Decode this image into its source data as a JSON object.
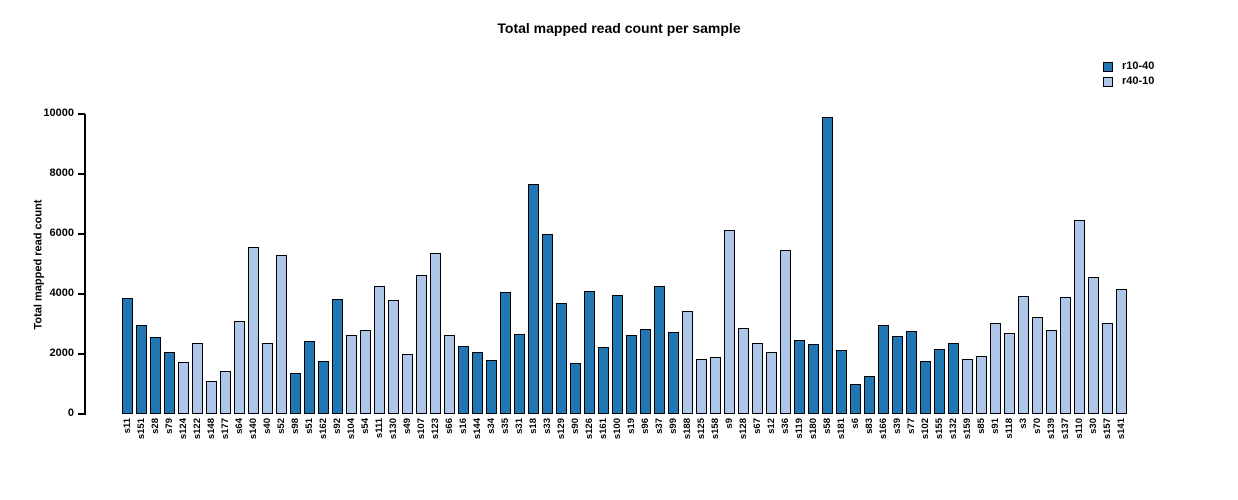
{
  "chart_data": {
    "type": "bar",
    "title": "Total mapped read count per sample",
    "ylabel": "Total mapped read count",
    "xlabel": "",
    "ylim": [
      0,
      10000
    ],
    "yticks": [
      0,
      2000,
      4000,
      6000,
      8000,
      10000
    ],
    "grid": false,
    "legend_position": "top-right",
    "legend": [
      {
        "label": "r10-40",
        "color": "#2077B4"
      },
      {
        "label": "r40-10",
        "color": "#AEC7E8"
      }
    ],
    "samples": [
      {
        "label": "s11",
        "group": "r10-40",
        "value": 3880
      },
      {
        "label": "s151",
        "group": "r10-40",
        "value": 2980
      },
      {
        "label": "s28",
        "group": "r10-40",
        "value": 2580
      },
      {
        "label": "s79",
        "group": "r10-40",
        "value": 2080
      },
      {
        "label": "s124",
        "group": "r40-10",
        "value": 1740
      },
      {
        "label": "s122",
        "group": "r40-10",
        "value": 2380
      },
      {
        "label": "s148",
        "group": "r40-10",
        "value": 1100
      },
      {
        "label": "s177",
        "group": "r40-10",
        "value": 1440
      },
      {
        "label": "s64",
        "group": "r40-10",
        "value": 3110
      },
      {
        "label": "s140",
        "group": "r40-10",
        "value": 5550
      },
      {
        "label": "s40",
        "group": "r40-10",
        "value": 2360
      },
      {
        "label": "s52",
        "group": "r40-10",
        "value": 5310
      },
      {
        "label": "s98",
        "group": "r10-40",
        "value": 1370
      },
      {
        "label": "s51",
        "group": "r10-40",
        "value": 2430
      },
      {
        "label": "s162",
        "group": "r10-40",
        "value": 1780
      },
      {
        "label": "s92",
        "group": "r10-40",
        "value": 3840
      },
      {
        "label": "s104",
        "group": "r40-10",
        "value": 2630
      },
      {
        "label": "s54",
        "group": "r40-10",
        "value": 2800
      },
      {
        "label": "s111",
        "group": "r40-10",
        "value": 4270
      },
      {
        "label": "s130",
        "group": "r40-10",
        "value": 3800
      },
      {
        "label": "s49",
        "group": "r40-10",
        "value": 2000
      },
      {
        "label": "s107",
        "group": "r40-10",
        "value": 4630
      },
      {
        "label": "s123",
        "group": "r40-10",
        "value": 5380
      },
      {
        "label": "s66",
        "group": "r40-10",
        "value": 2630
      },
      {
        "label": "s16",
        "group": "r10-40",
        "value": 2260
      },
      {
        "label": "s144",
        "group": "r10-40",
        "value": 2080
      },
      {
        "label": "s34",
        "group": "r10-40",
        "value": 1810
      },
      {
        "label": "s35",
        "group": "r10-40",
        "value": 4080
      },
      {
        "label": "s31",
        "group": "r10-40",
        "value": 2670
      },
      {
        "label": "s18",
        "group": "r10-40",
        "value": 7650
      },
      {
        "label": "s33",
        "group": "r10-40",
        "value": 6010
      },
      {
        "label": "s129",
        "group": "r10-40",
        "value": 3690
      },
      {
        "label": "s90",
        "group": "r10-40",
        "value": 1710
      },
      {
        "label": "s126",
        "group": "r10-40",
        "value": 4100
      },
      {
        "label": "s161",
        "group": "r10-40",
        "value": 2240
      },
      {
        "label": "s100",
        "group": "r10-40",
        "value": 3970
      },
      {
        "label": "s19",
        "group": "r10-40",
        "value": 2640
      },
      {
        "label": "s96",
        "group": "r10-40",
        "value": 2840
      },
      {
        "label": "s37",
        "group": "r10-40",
        "value": 4270
      },
      {
        "label": "s99",
        "group": "r10-40",
        "value": 2730
      },
      {
        "label": "s188",
        "group": "r40-10",
        "value": 3440
      },
      {
        "label": "s125",
        "group": "r40-10",
        "value": 1830
      },
      {
        "label": "s158",
        "group": "r40-10",
        "value": 1910
      },
      {
        "label": "s9",
        "group": "r40-10",
        "value": 6140
      },
      {
        "label": "s128",
        "group": "r40-10",
        "value": 2850
      },
      {
        "label": "s67",
        "group": "r40-10",
        "value": 2360
      },
      {
        "label": "s12",
        "group": "r40-10",
        "value": 2080
      },
      {
        "label": "s36",
        "group": "r40-10",
        "value": 5460
      },
      {
        "label": "s119",
        "group": "r10-40",
        "value": 2470
      },
      {
        "label": "s180",
        "group": "r10-40",
        "value": 2330
      },
      {
        "label": "s58",
        "group": "r10-40",
        "value": 9910
      },
      {
        "label": "s181",
        "group": "r10-40",
        "value": 2130
      },
      {
        "label": "s6",
        "group": "r10-40",
        "value": 990
      },
      {
        "label": "s83",
        "group": "r10-40",
        "value": 1270
      },
      {
        "label": "s166",
        "group": "r10-40",
        "value": 2970
      },
      {
        "label": "s39",
        "group": "r10-40",
        "value": 2610
      },
      {
        "label": "s77",
        "group": "r10-40",
        "value": 2770
      },
      {
        "label": "s102",
        "group": "r10-40",
        "value": 1750
      },
      {
        "label": "s155",
        "group": "r10-40",
        "value": 2170
      },
      {
        "label": "s132",
        "group": "r10-40",
        "value": 2380
      },
      {
        "label": "s159",
        "group": "r40-10",
        "value": 1820
      },
      {
        "label": "s85",
        "group": "r40-10",
        "value": 1930
      },
      {
        "label": "s91",
        "group": "r40-10",
        "value": 3030
      },
      {
        "label": "s118",
        "group": "r40-10",
        "value": 2710
      },
      {
        "label": "s3",
        "group": "r40-10",
        "value": 3940
      },
      {
        "label": "s70",
        "group": "r40-10",
        "value": 3230
      },
      {
        "label": "s139",
        "group": "r40-10",
        "value": 2800
      },
      {
        "label": "s137",
        "group": "r40-10",
        "value": 3910
      },
      {
        "label": "s110",
        "group": "r40-10",
        "value": 6480
      },
      {
        "label": "s30",
        "group": "r40-10",
        "value": 4570
      },
      {
        "label": "s157",
        "group": "r40-10",
        "value": 3030
      },
      {
        "label": "s141",
        "group": "r40-10",
        "value": 4150
      }
    ]
  }
}
